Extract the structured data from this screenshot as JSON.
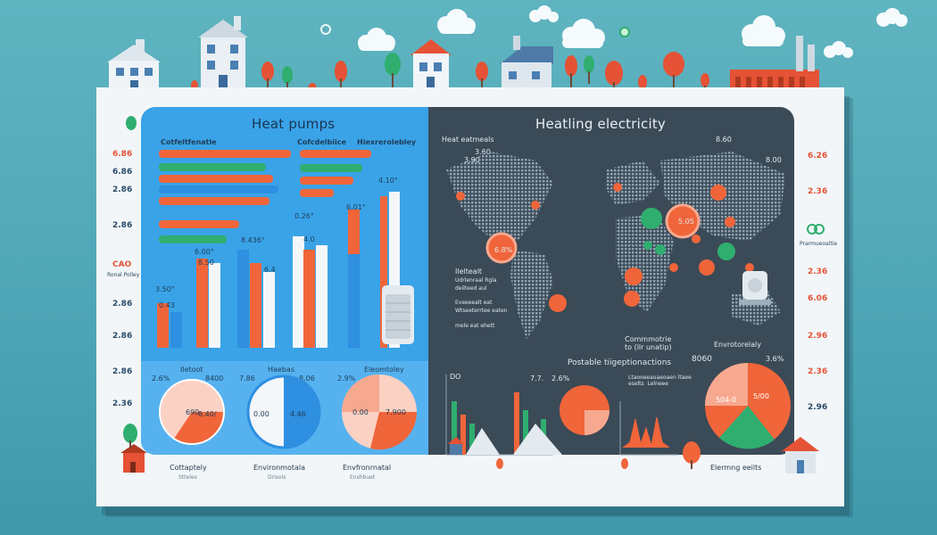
{
  "colors": {
    "background": "#4fa6b6",
    "left_panel": "#3aa3e8",
    "right_panel": "#3b4a57",
    "accent_orange": "#f0653a",
    "accent_green": "#2fae6f",
    "accent_blue": "#2f8fe0",
    "bar_white": "#f4f7fa"
  },
  "left_panel": {
    "title": "Heat pumps",
    "hbar_label_1": "Cotfeltfenatle",
    "hbar_label_2": "Cofcdelbiice",
    "hbar_label_3": "Hiexrerolebley",
    "bar_labels": [
      "3.50°",
      "6.00°",
      "8.436°",
      "0.26°",
      "6.01°",
      "4.10°",
      "0.43",
      "8.50",
      "6.4",
      "4.0"
    ],
    "pie_headers": [
      "Iletoot",
      "Haebas",
      "Eleomtoley"
    ],
    "pies": [
      {
        "top_left": "2.6%",
        "top_right": "8400",
        "inner_left": "690",
        "inner_right": "8.40/"
      },
      {
        "top_left": "7.86",
        "top_right": "8.06",
        "inner_left": "0.00",
        "inner_right": "4.46"
      },
      {
        "top_left": "2.9%",
        "top_right": "",
        "inner_left": "0.00",
        "inner_right": "7.900"
      }
    ],
    "captions": [
      {
        "title": "Cottaptely",
        "sub": "Stteles"
      },
      {
        "title": "Environmotala",
        "sub": "Drisols"
      },
      {
        "title": "Envfronrnatal",
        "sub": "Enshbuet"
      }
    ]
  },
  "right_panel": {
    "title": "Heatling electricity",
    "map_header": "Heat eatmeals",
    "map_value_1": "3.90",
    "map_value_2": "8.00",
    "map_value_3": "3.60",
    "map_value_4": "8.60",
    "bubble_labels": [
      "6.8%",
      "5.05"
    ],
    "map_legend_title": "Ileltealt",
    "map_legend_lines": [
      "Udrlenraal Rgla",
      "deilteed aul",
      "Eveeeealt eat",
      "Wtseeterrtee eaten",
      "mele eat ehett"
    ],
    "map_note_1": "Commmotrie\nto (ilr unatip)",
    "map_note_2": "Envrotorelaly",
    "lower_title": "Postable tiigeptionactions",
    "lower_vals": [
      "DO",
      "7.7.",
      "2.6%"
    ],
    "lower_note": "Ltaooeeauaeoaen ltaee\neselts  Lelneee",
    "big_pie_value": "5/00",
    "big_pie_small": "3.6%",
    "big_pie_left": "8060",
    "big_pie_inner": "5/00",
    "big_pie_inner2": "504-0",
    "footer_label": "Elermng eeilts"
  },
  "left_side_values": [
    {
      "text": "6.86",
      "color": "#e55235"
    },
    {
      "text": "2.86",
      "color": "#2a4a6a"
    },
    {
      "text": "2.86",
      "color": "#2a4a6a"
    },
    {
      "text": "6.86",
      "color": "#2a4a6a"
    },
    {
      "text": "CAO",
      "color": "#e55235"
    },
    {
      "text": "2.86",
      "color": "#2a4a6a"
    },
    {
      "text": "2.86",
      "color": "#2a4a6a"
    },
    {
      "text": "2.86",
      "color": "#2a4a6a"
    },
    {
      "text": "2.36",
      "color": "#2a4a6a"
    }
  ],
  "left_side_note": "Ronal Polley",
  "right_side_values": [
    {
      "text": "6.26",
      "color": "#e55235"
    },
    {
      "text": "2.36",
      "color": "#e55235"
    },
    {
      "text": "6.06",
      "color": "#e55235"
    },
    {
      "text": "2.96",
      "color": "#e55235"
    },
    {
      "text": "2.36",
      "color": "#e55235"
    },
    {
      "text": "2.96",
      "color": "#2a4a6a"
    },
    {
      "text": "2.36",
      "color": "#e55235"
    }
  ],
  "right_side_note": "Prarmueoaltie",
  "icons": [
    "house-icon",
    "factory-icon",
    "tree-icon",
    "cloud-icon",
    "sun-icon",
    "heat-pump-unit-icon",
    "mountain-icon"
  ]
}
